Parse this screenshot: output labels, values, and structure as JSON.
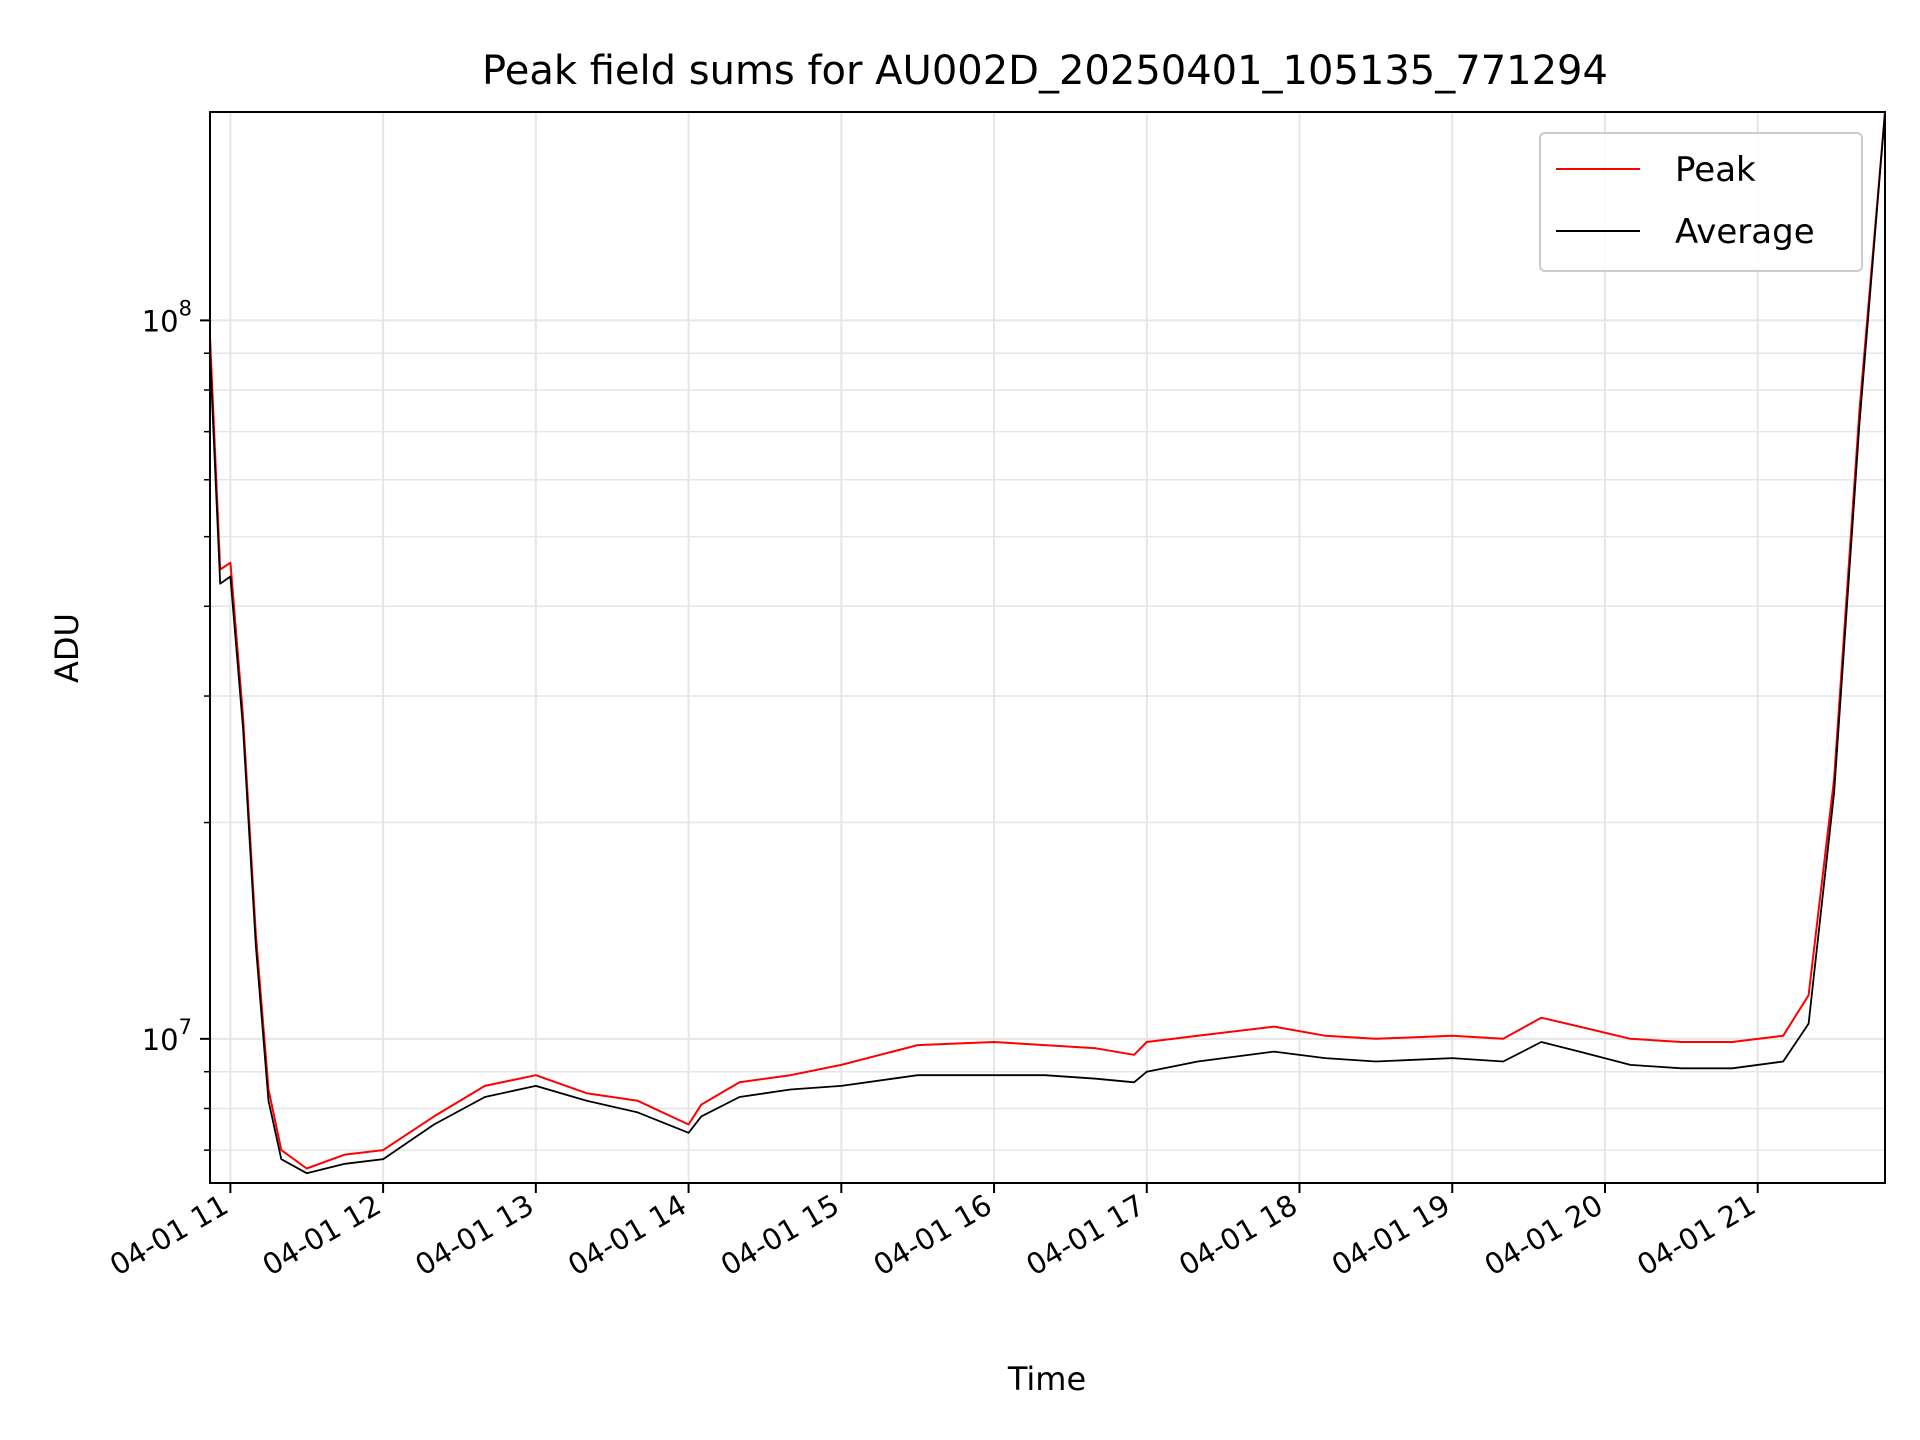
{
  "chart_data": {
    "type": "line",
    "title": "Peak field sums for AU002D_20250401_105135_771294",
    "xlabel": "Time",
    "ylabel": "ADU",
    "yscale": "log",
    "grid": true,
    "legend_position": "top-right",
    "xlim": [
      "04-01 10:52",
      "04-01 21:50"
    ],
    "ylim": [
      6300000,
      195000000
    ],
    "x_ticks": [
      "04-01 11",
      "04-01 12",
      "04-01 13",
      "04-01 14",
      "04-01 15",
      "04-01 16",
      "04-01 17",
      "04-01 18",
      "04-01 19",
      "04-01 20",
      "04-01 21"
    ],
    "y_ticks": [
      {
        "value": 10000000,
        "base": "10",
        "exp": "7"
      },
      {
        "value": 100000000,
        "base": "10",
        "exp": "8"
      }
    ],
    "series": [
      {
        "name": "Peak",
        "color": "#ff0000",
        "x": [
          "04-01 10:52",
          "04-01 10:56",
          "04-01 11:00",
          "04-01 11:05",
          "04-01 11:10",
          "04-01 11:15",
          "04-01 11:20",
          "04-01 11:30",
          "04-01 11:45",
          "04-01 12:00",
          "04-01 12:20",
          "04-01 12:40",
          "04-01 13:00",
          "04-01 13:20",
          "04-01 13:40",
          "04-01 14:00",
          "04-01 14:05",
          "04-01 14:20",
          "04-01 14:40",
          "04-01 15:00",
          "04-01 15:30",
          "04-01 16:00",
          "04-01 16:20",
          "04-01 16:40",
          "04-01 16:55",
          "04-01 17:00",
          "04-01 17:20",
          "04-01 17:50",
          "04-01 18:10",
          "04-01 18:30",
          "04-01 19:00",
          "04-01 19:20",
          "04-01 19:35",
          "04-01 19:50",
          "04-01 20:10",
          "04-01 20:30",
          "04-01 20:50",
          "04-01 21:10",
          "04-01 21:20",
          "04-01 21:30",
          "04-01 21:40",
          "04-01 21:50"
        ],
        "y": [
          95000000,
          45000000,
          46000000,
          28000000,
          14000000,
          8500000,
          7000000,
          6600000,
          6900000,
          7000000,
          7800000,
          8600000,
          8900000,
          8400000,
          8200000,
          7600000,
          8100000,
          8700000,
          8900000,
          9200000,
          9800000,
          9900000,
          9800000,
          9700000,
          9500000,
          9900000,
          10100000,
          10400000,
          10100000,
          10000000,
          10100000,
          10000000,
          10700000,
          10400000,
          10000000,
          9900000,
          9900000,
          10100000,
          11500000,
          23000000,
          75000000,
          195000000
        ]
      },
      {
        "name": "Average",
        "color": "#000000",
        "x": [
          "04-01 10:52",
          "04-01 10:56",
          "04-01 11:00",
          "04-01 11:05",
          "04-01 11:10",
          "04-01 11:15",
          "04-01 11:20",
          "04-01 11:30",
          "04-01 11:45",
          "04-01 12:00",
          "04-01 12:20",
          "04-01 12:40",
          "04-01 13:00",
          "04-01 13:20",
          "04-01 13:40",
          "04-01 14:00",
          "04-01 14:05",
          "04-01 14:20",
          "04-01 14:40",
          "04-01 15:00",
          "04-01 15:30",
          "04-01 16:00",
          "04-01 16:20",
          "04-01 16:40",
          "04-01 16:55",
          "04-01 17:00",
          "04-01 17:20",
          "04-01 17:50",
          "04-01 18:10",
          "04-01 18:30",
          "04-01 19:00",
          "04-01 19:20",
          "04-01 19:35",
          "04-01 19:50",
          "04-01 20:10",
          "04-01 20:30",
          "04-01 20:50",
          "04-01 21:10",
          "04-01 21:20",
          "04-01 21:30",
          "04-01 21:40",
          "04-01 21:50"
        ],
        "y": [
          90000000,
          43000000,
          44000000,
          27000000,
          13500000,
          8200000,
          6800000,
          6500000,
          6700000,
          6800000,
          7600000,
          8300000,
          8600000,
          8200000,
          7900000,
          7400000,
          7800000,
          8300000,
          8500000,
          8600000,
          8900000,
          8900000,
          8900000,
          8800000,
          8700000,
          9000000,
          9300000,
          9600000,
          9400000,
          9300000,
          9400000,
          9300000,
          9900000,
          9600000,
          9200000,
          9100000,
          9100000,
          9300000,
          10500000,
          22000000,
          72000000,
          195000000
        ]
      }
    ]
  }
}
